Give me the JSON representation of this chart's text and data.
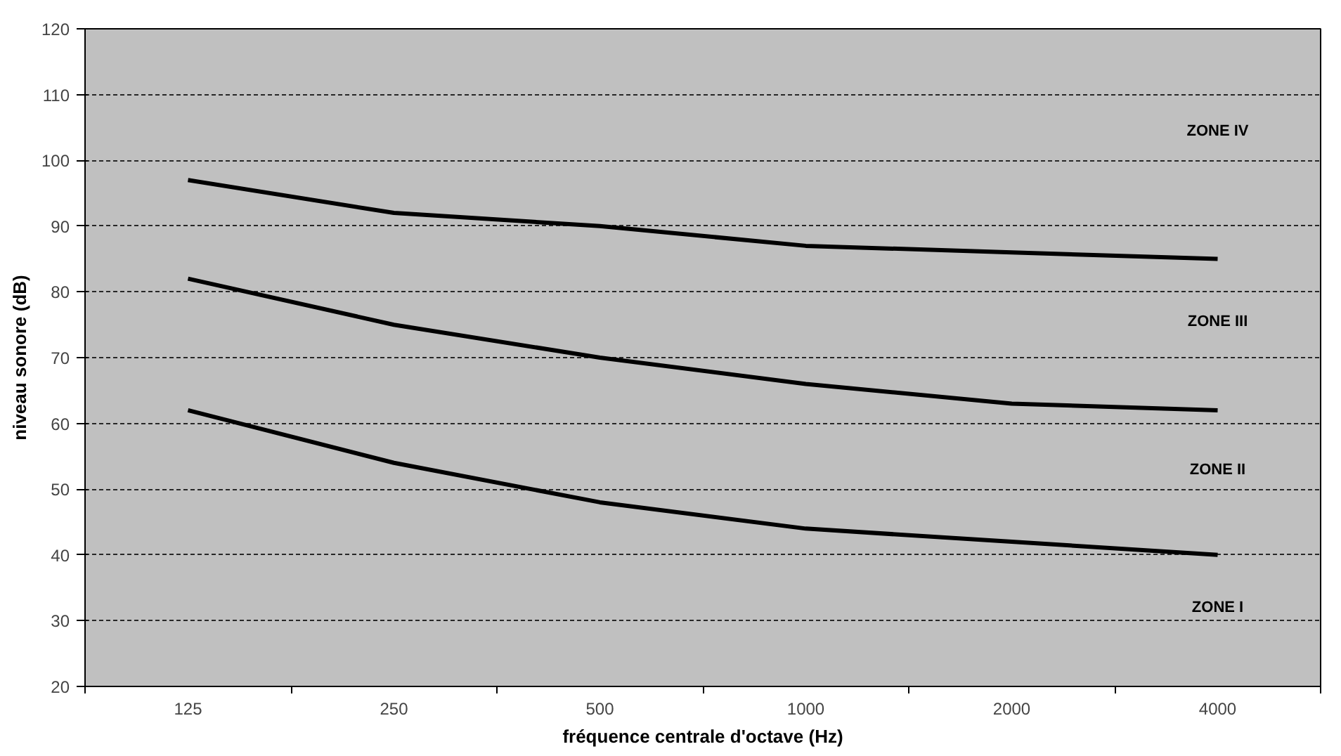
{
  "chart_data": {
    "type": "line",
    "xlabel": "fréquence centrale d'octave (Hz)",
    "ylabel": "niveau sonore (dB)",
    "categories": [
      "125",
      "250",
      "500",
      "1000",
      "2000",
      "4000"
    ],
    "series": [
      {
        "color": "#000000",
        "values": [
          97,
          92,
          90,
          87,
          86,
          85
        ]
      },
      {
        "color": "#000000",
        "values": [
          82,
          75,
          70,
          66,
          63,
          62
        ]
      },
      {
        "color": "#000000",
        "values": [
          62,
          54,
          48,
          44,
          42,
          40
        ]
      }
    ],
    "ylim": [
      20,
      120
    ],
    "yticks": [
      20,
      30,
      40,
      50,
      60,
      70,
      80,
      90,
      100,
      110,
      120
    ],
    "grid": "y",
    "marker": "none",
    "line_style": "solid",
    "annotations": [
      "ZONE IV",
      "ZONE III",
      "ZONE II",
      "ZONE I"
    ]
  }
}
